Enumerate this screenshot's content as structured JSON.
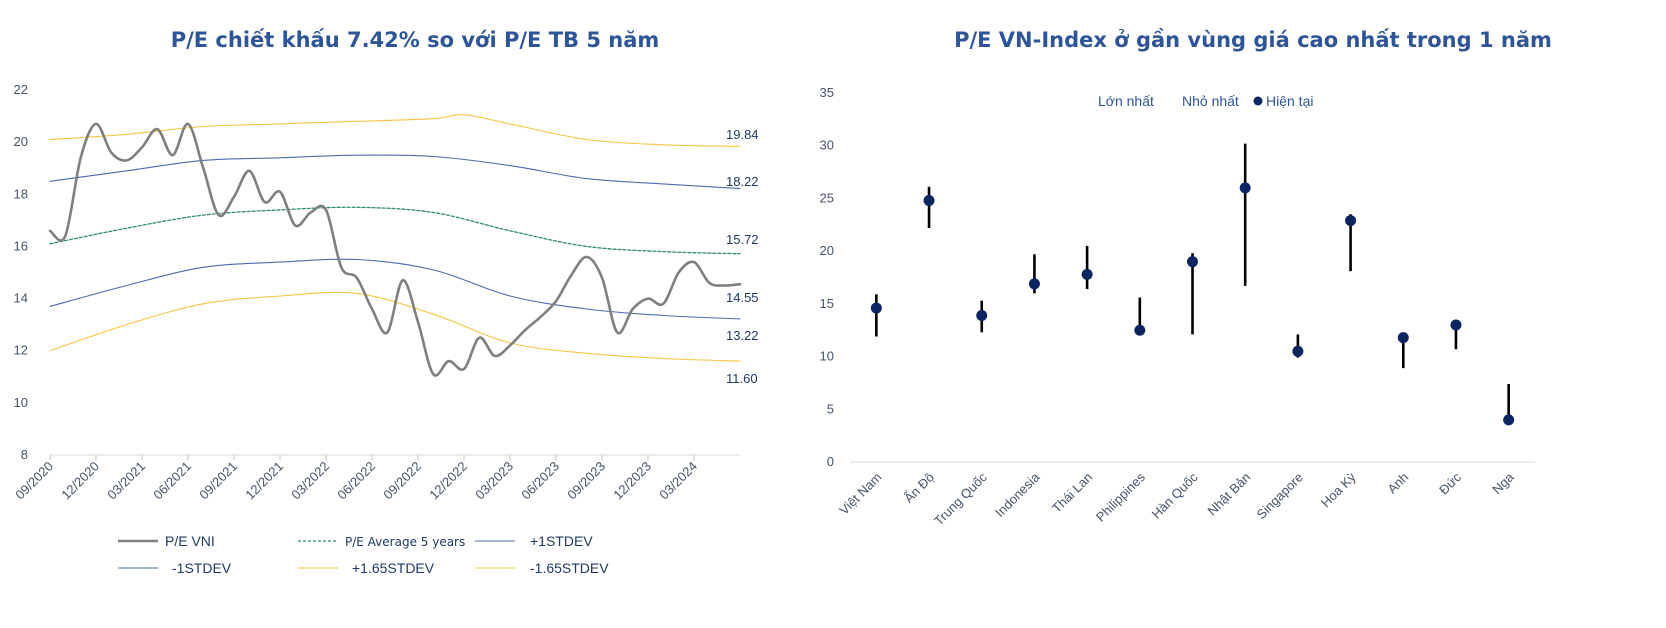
{
  "left": {
    "title": "P/E chiết khấu 7.42% so với P/E TB 5 năm",
    "chart_data": {
      "type": "line",
      "title": "P/E chiết khấu 7.42% so với P/E TB 5 năm",
      "ylim": [
        8,
        22
      ],
      "y_ticks": [
        8,
        10,
        12,
        14,
        16,
        18,
        20,
        22
      ],
      "x_ticks": [
        "09/2020",
        "12/2020",
        "03/2021",
        "06/2021",
        "09/2021",
        "12/2021",
        "03/2022",
        "06/2022",
        "09/2022",
        "12/2022",
        "03/2023",
        "06/2023",
        "09/2023",
        "12/2023",
        "03/2024"
      ],
      "x_range_months": [
        0,
        45
      ],
      "series": [
        {
          "name": "P/E VNI",
          "color": "#7F7F7F",
          "x": [
            0,
            1,
            2,
            3,
            4,
            5,
            6,
            7,
            8,
            9,
            10,
            11,
            12,
            13,
            14,
            15,
            16,
            17,
            18,
            19,
            20,
            21,
            22,
            23,
            24,
            25,
            26,
            27,
            28,
            29,
            30,
            31,
            32,
            33,
            34,
            35,
            36,
            37,
            38,
            39,
            40,
            41,
            42,
            43,
            44,
            45
          ],
          "y": [
            16.6,
            16.4,
            19.4,
            20.7,
            19.6,
            19.3,
            19.8,
            20.5,
            19.5,
            20.7,
            19.0,
            17.2,
            17.9,
            18.9,
            17.7,
            18.1,
            16.8,
            17.3,
            17.4,
            15.2,
            14.8,
            13.6,
            12.7,
            14.7,
            13.1,
            11.1,
            11.6,
            11.3,
            12.5,
            11.8,
            12.2,
            12.8,
            13.3,
            13.9,
            14.9,
            15.6,
            14.8,
            12.7,
            13.6,
            14.0,
            13.8,
            15.0,
            15.4,
            14.6,
            14.5,
            14.55
          ]
        },
        {
          "name": "P/E Average 5 years",
          "color": "#2E8B6F",
          "x": [
            0,
            5,
            10,
            15,
            20,
            25,
            30,
            35,
            40,
            45
          ],
          "y": [
            16.1,
            16.7,
            17.2,
            17.4,
            17.5,
            17.3,
            16.6,
            16.0,
            15.8,
            15.72
          ]
        },
        {
          "name": "+1STDEV",
          "color": "#4A6AAF",
          "x": [
            0,
            5,
            10,
            15,
            20,
            25,
            30,
            35,
            40,
            45
          ],
          "y": [
            18.5,
            18.9,
            19.3,
            19.4,
            19.5,
            19.45,
            19.1,
            18.6,
            18.4,
            18.22
          ]
        },
        {
          "name": "-1STDEV",
          "color": "#4A6AAF",
          "x": [
            0,
            5,
            10,
            15,
            20,
            25,
            30,
            35,
            40,
            45
          ],
          "y": [
            13.7,
            14.5,
            15.2,
            15.4,
            15.5,
            15.1,
            14.1,
            13.6,
            13.35,
            13.22
          ]
        },
        {
          "name": "+1.65STDEV",
          "color": "#F5C542",
          "x": [
            0,
            5,
            10,
            15,
            20,
            25,
            27,
            30,
            35,
            40,
            45
          ],
          "y": [
            20.1,
            20.3,
            20.6,
            20.7,
            20.8,
            20.9,
            21.05,
            20.7,
            20.1,
            19.9,
            19.84
          ]
        },
        {
          "name": "-1.65STDEV",
          "color": "#F5C542",
          "x": [
            0,
            5,
            10,
            15,
            20,
            25,
            30,
            35,
            40,
            45
          ],
          "y": [
            12.0,
            13.0,
            13.8,
            14.1,
            14.2,
            13.4,
            12.3,
            11.9,
            11.7,
            11.6
          ]
        }
      ],
      "end_labels": [
        "19.84",
        "18.22",
        "15.72",
        "14.55",
        "13.22",
        "11.60"
      ],
      "end_label_values": [
        19.84,
        18.22,
        15.72,
        14.55,
        13.22,
        11.6
      ],
      "legend_placement": "bottom"
    }
  },
  "right": {
    "title": "P/E VN-Index ở gần vùng giá cao nhất trong 1 năm",
    "chart_data": {
      "type": "range-dot",
      "title": "P/E VN-Index ở gần vùng giá cao nhất trong 1 năm",
      "ylim": [
        0,
        35
      ],
      "y_ticks": [
        0,
        5,
        10,
        15,
        20,
        25,
        30,
        35
      ],
      "categories": [
        "Việt Nam",
        "Ấn Độ",
        "Trung Quốc",
        "Indonesia",
        "Thái Lan",
        "Philippines",
        "Hàn Quốc",
        "Nhật Bản",
        "Singapore",
        "Hoa Kỳ",
        "Anh",
        "Đức",
        "Nga"
      ],
      "series": [
        {
          "name": "Lớn nhất",
          "values": [
            15.9,
            26.1,
            15.3,
            19.7,
            20.5,
            15.6,
            19.8,
            30.2,
            12.1,
            23.5,
            11.9,
            13.2,
            7.4
          ]
        },
        {
          "name": "Nhỏ nhất",
          "values": [
            11.9,
            22.2,
            12.3,
            16.0,
            16.4,
            12.5,
            12.1,
            16.7,
            9.9,
            18.1,
            8.9,
            10.7,
            3.5
          ]
        },
        {
          "name": "Hiện tại",
          "values": [
            14.6,
            24.8,
            13.9,
            16.9,
            17.8,
            12.5,
            19.0,
            26.0,
            10.5,
            22.9,
            11.8,
            13.0,
            4.0
          ]
        }
      ],
      "legend": [
        "Lớn nhất",
        "Nhỏ nhất",
        "Hiện tại"
      ],
      "legend_placement": "top",
      "colors": {
        "range": "#000000",
        "dot": "#0B2560"
      }
    }
  }
}
